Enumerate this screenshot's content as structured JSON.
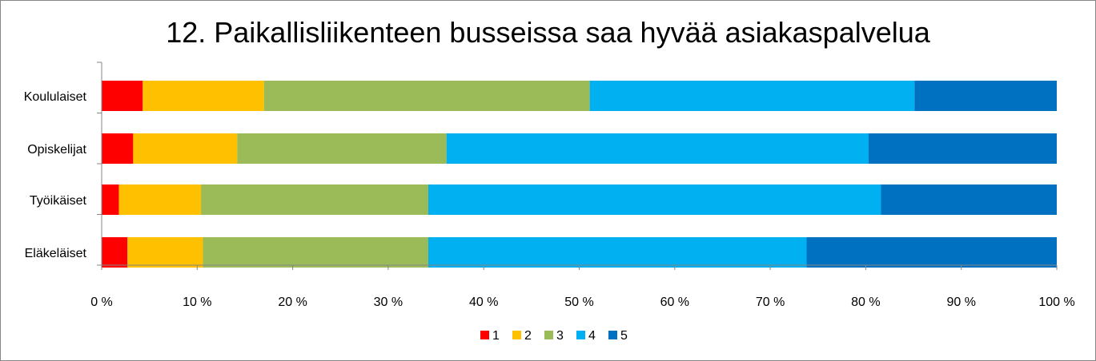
{
  "chart_data": {
    "type": "bar",
    "orientation": "horizontal",
    "stacked": "percent",
    "title": "12. Paikallisliikenteen busseissa saa hyvää asiakaspalvelua",
    "categories": [
      "Koululaiset",
      "Opiskelijat",
      "Työikäiset",
      "Eläkeläiset"
    ],
    "series": [
      {
        "name": "1",
        "color": "#ff0000",
        "values": [
          4.3,
          3.3,
          1.8,
          2.7
        ]
      },
      {
        "name": "2",
        "color": "#ffc000",
        "values": [
          12.7,
          10.9,
          8.6,
          7.9
        ]
      },
      {
        "name": "3",
        "color": "#9bbb59",
        "values": [
          34.1,
          21.9,
          23.8,
          23.6
        ]
      },
      {
        "name": "4",
        "color": "#00b0f0",
        "values": [
          34.0,
          44.2,
          47.4,
          39.6
        ]
      },
      {
        "name": "5",
        "color": "#0070c0",
        "values": [
          14.9,
          19.7,
          18.4,
          26.2
        ]
      }
    ],
    "xlim": [
      0,
      100
    ],
    "xticks": [
      "0 %",
      "10 %",
      "20 %",
      "30 %",
      "40 %",
      "50 %",
      "60 %",
      "70 %",
      "80 %",
      "90 %",
      "100 %"
    ],
    "legend": "bottom",
    "grid": false
  }
}
